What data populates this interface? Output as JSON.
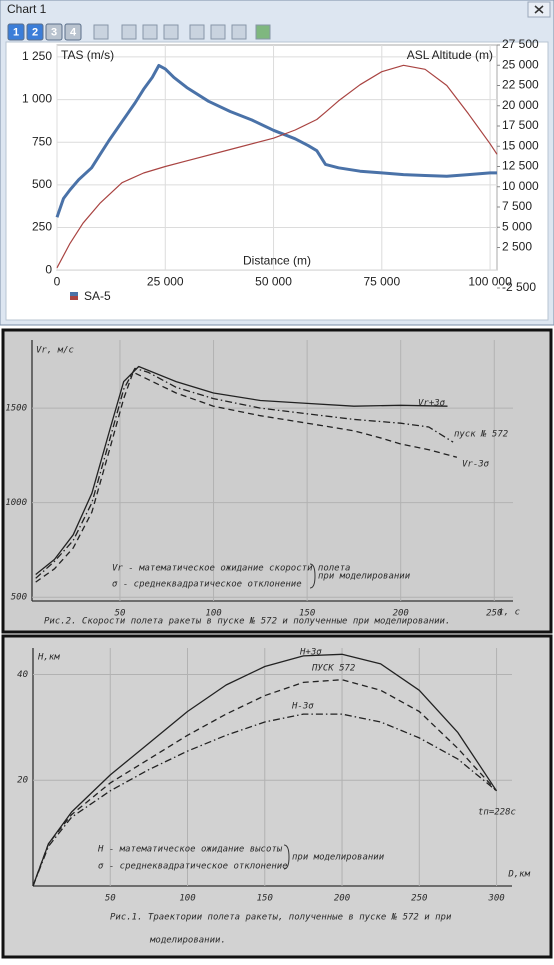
{
  "window": {
    "title": "Chart 1",
    "toolbar_buttons": [
      "1",
      "2",
      "3",
      "4"
    ]
  },
  "chart_data": [
    {
      "type": "line",
      "ylabel": "TAS (m/s)",
      "y2label": "ASL Altitude (m)",
      "xlabel": "Distance (m)",
      "legend": "SA-5",
      "grid": true,
      "xlim": [
        0,
        101600
      ],
      "xticks": [
        0,
        {
          "value": 25000,
          "label": "25 000"
        },
        {
          "value": 50000,
          "label": "50 000"
        },
        {
          "value": 75000,
          "label": "75 000"
        },
        {
          "value": 100000,
          "label": "100 000"
        }
      ],
      "ylim": [
        -105,
        1320
      ],
      "yticks": [
        0,
        250,
        500,
        750,
        {
          "value": 1000,
          "label": "1 000"
        },
        {
          "value": 1250,
          "label": "1 250"
        }
      ],
      "y2lim": [
        -2500,
        27500
      ],
      "y2ticks": [
        {
          "value": -2500,
          "label": "-2 500"
        },
        {
          "value": 2500,
          "label": "2 500"
        },
        {
          "value": 5000,
          "label": "5 000"
        },
        {
          "value": 7500,
          "label": "7 500"
        },
        {
          "value": 10000,
          "label": "10 000"
        },
        {
          "value": 12500,
          "label": "12 500"
        },
        {
          "value": 15000,
          "label": "15 000"
        },
        {
          "value": 17500,
          "label": "17 500"
        },
        {
          "value": 20000,
          "label": "20 000"
        },
        {
          "value": 22500,
          "label": "22 500"
        },
        {
          "value": 25000,
          "label": "25 000"
        },
        {
          "value": 27500,
          "label": "27 500"
        }
      ],
      "series": [
        {
          "color": "#4a72a8",
          "width": 3,
          "x": [
            0,
            1500,
            3000,
            5000,
            8000,
            10000,
            12000,
            15000,
            18000,
            20000,
            22000,
            23500,
            25000,
            27000,
            30000,
            35000,
            40000,
            45000,
            50000,
            55000,
            58000,
            60000,
            62000,
            65000,
            70000,
            75000,
            80000,
            85000,
            90000,
            95000,
            100000,
            101600
          ],
          "values": [
            310,
            420,
            470,
            530,
            600,
            680,
            760,
            870,
            980,
            1060,
            1130,
            1200,
            1180,
            1130,
            1070,
            990,
            930,
            880,
            820,
            770,
            730,
            700,
            620,
            600,
            580,
            570,
            560,
            555,
            550,
            560,
            570,
            570
          ]
        },
        {
          "color": "#a94442",
          "width": 1.2,
          "axis": "y2",
          "x": [
            0,
            3000,
            6000,
            10000,
            15000,
            20000,
            25000,
            30000,
            40000,
            50000,
            55000,
            60000,
            62000,
            65000,
            70000,
            75000,
            80000,
            85000,
            90000,
            95000,
            100000,
            101600
          ],
          "values": [
            0,
            3000,
            5500,
            8000,
            10500,
            11700,
            12500,
            13200,
            14600,
            16000,
            17000,
            18300,
            19200,
            20600,
            22600,
            24200,
            25000,
            24500,
            22500,
            19000,
            15300,
            14000
          ]
        }
      ]
    },
    {
      "type": "line",
      "ylabel": "Vr, м/с",
      "xlabel": "t, c",
      "grid": true,
      "notes": [
        "Vr - математическое ожидание скорости полета",
        "σ - среднеквадратическое отклонение"
      ],
      "bracket_note": "при моделировании",
      "caption": [
        "Рис.2. Скорости полета ракеты в пуске № 572 и полученные при моделировании."
      ],
      "xlim": [
        3,
        260
      ],
      "xticks": [
        50,
        100,
        150,
        200,
        250
      ],
      "ylim": [
        480,
        1860
      ],
      "yticks": [
        500,
        1000,
        1500
      ],
      "series": [
        {
          "name": "Vr+3σ",
          "color": "#222222",
          "style": "solid",
          "x": [
            5,
            15,
            25,
            35,
            45,
            52,
            60,
            80,
            100,
            125,
            150,
            175,
            200,
            225
          ],
          "values": [
            620,
            700,
            830,
            1050,
            1400,
            1640,
            1720,
            1640,
            1580,
            1540,
            1525,
            1510,
            1515,
            1510
          ]
        },
        {
          "name": "пуск № 572",
          "color": "#222222",
          "style": "dash-dot",
          "x": [
            5,
            15,
            25,
            35,
            45,
            52,
            58,
            65,
            80,
            100,
            125,
            150,
            175,
            200,
            215,
            228
          ],
          "values": [
            600,
            690,
            800,
            1000,
            1350,
            1600,
            1710,
            1690,
            1610,
            1550,
            1500,
            1470,
            1440,
            1420,
            1400,
            1320
          ]
        },
        {
          "name": "Vr-3σ",
          "color": "#222222",
          "style": "dashed",
          "x": [
            5,
            15,
            25,
            35,
            45,
            52,
            57,
            80,
            100,
            125,
            150,
            175,
            190,
            200,
            215,
            230
          ],
          "values": [
            580,
            650,
            760,
            950,
            1300,
            1550,
            1690,
            1580,
            1510,
            1460,
            1420,
            1380,
            1340,
            1310,
            1280,
            1240
          ]
        }
      ]
    },
    {
      "type": "line",
      "ylabel": "H,км",
      "xlabel": "D,км",
      "grid": true,
      "annotation": "tп=228с",
      "notes": [
        "Н - математическое ожидание высоты",
        "σ - среднеквадратическое отклонение"
      ],
      "bracket_note": "при моделировании",
      "caption": [
        "Рис.1. Траектории полета ракеты, полученные в пуске № 572 и при",
        "моделировании."
      ],
      "xlim": [
        0,
        310
      ],
      "xticks": [
        50,
        100,
        150,
        200,
        250,
        300
      ],
      "ylim": [
        0,
        45
      ],
      "yticks": [
        20,
        40
      ],
      "series": [
        {
          "name": "H+3σ",
          "color": "#222222",
          "style": "solid",
          "x": [
            0,
            10,
            25,
            50,
            75,
            100,
            125,
            150,
            175,
            200,
            225,
            250,
            275,
            300
          ],
          "values": [
            0,
            8,
            14,
            21,
            27,
            33,
            38,
            41.5,
            43.5,
            43.8,
            42,
            37,
            29,
            18
          ]
        },
        {
          "name": "ПУСК 572",
          "color": "#222222",
          "style": "dashed",
          "x": [
            0,
            10,
            25,
            50,
            75,
            100,
            125,
            150,
            175,
            200,
            225,
            250,
            275,
            300
          ],
          "values": [
            0,
            8,
            13.5,
            19.5,
            24,
            28.5,
            32.5,
            36,
            38.5,
            39,
            37,
            33,
            26,
            18
          ]
        },
        {
          "name": "H-3σ",
          "color": "#222222",
          "style": "dash-dot",
          "x": [
            0,
            10,
            25,
            50,
            75,
            100,
            125,
            150,
            175,
            200,
            225,
            250,
            275,
            300
          ],
          "values": [
            0,
            7.5,
            13,
            18,
            22,
            25.5,
            28.5,
            31,
            32.5,
            32.5,
            31,
            28,
            24,
            18
          ]
        }
      ]
    }
  ]
}
